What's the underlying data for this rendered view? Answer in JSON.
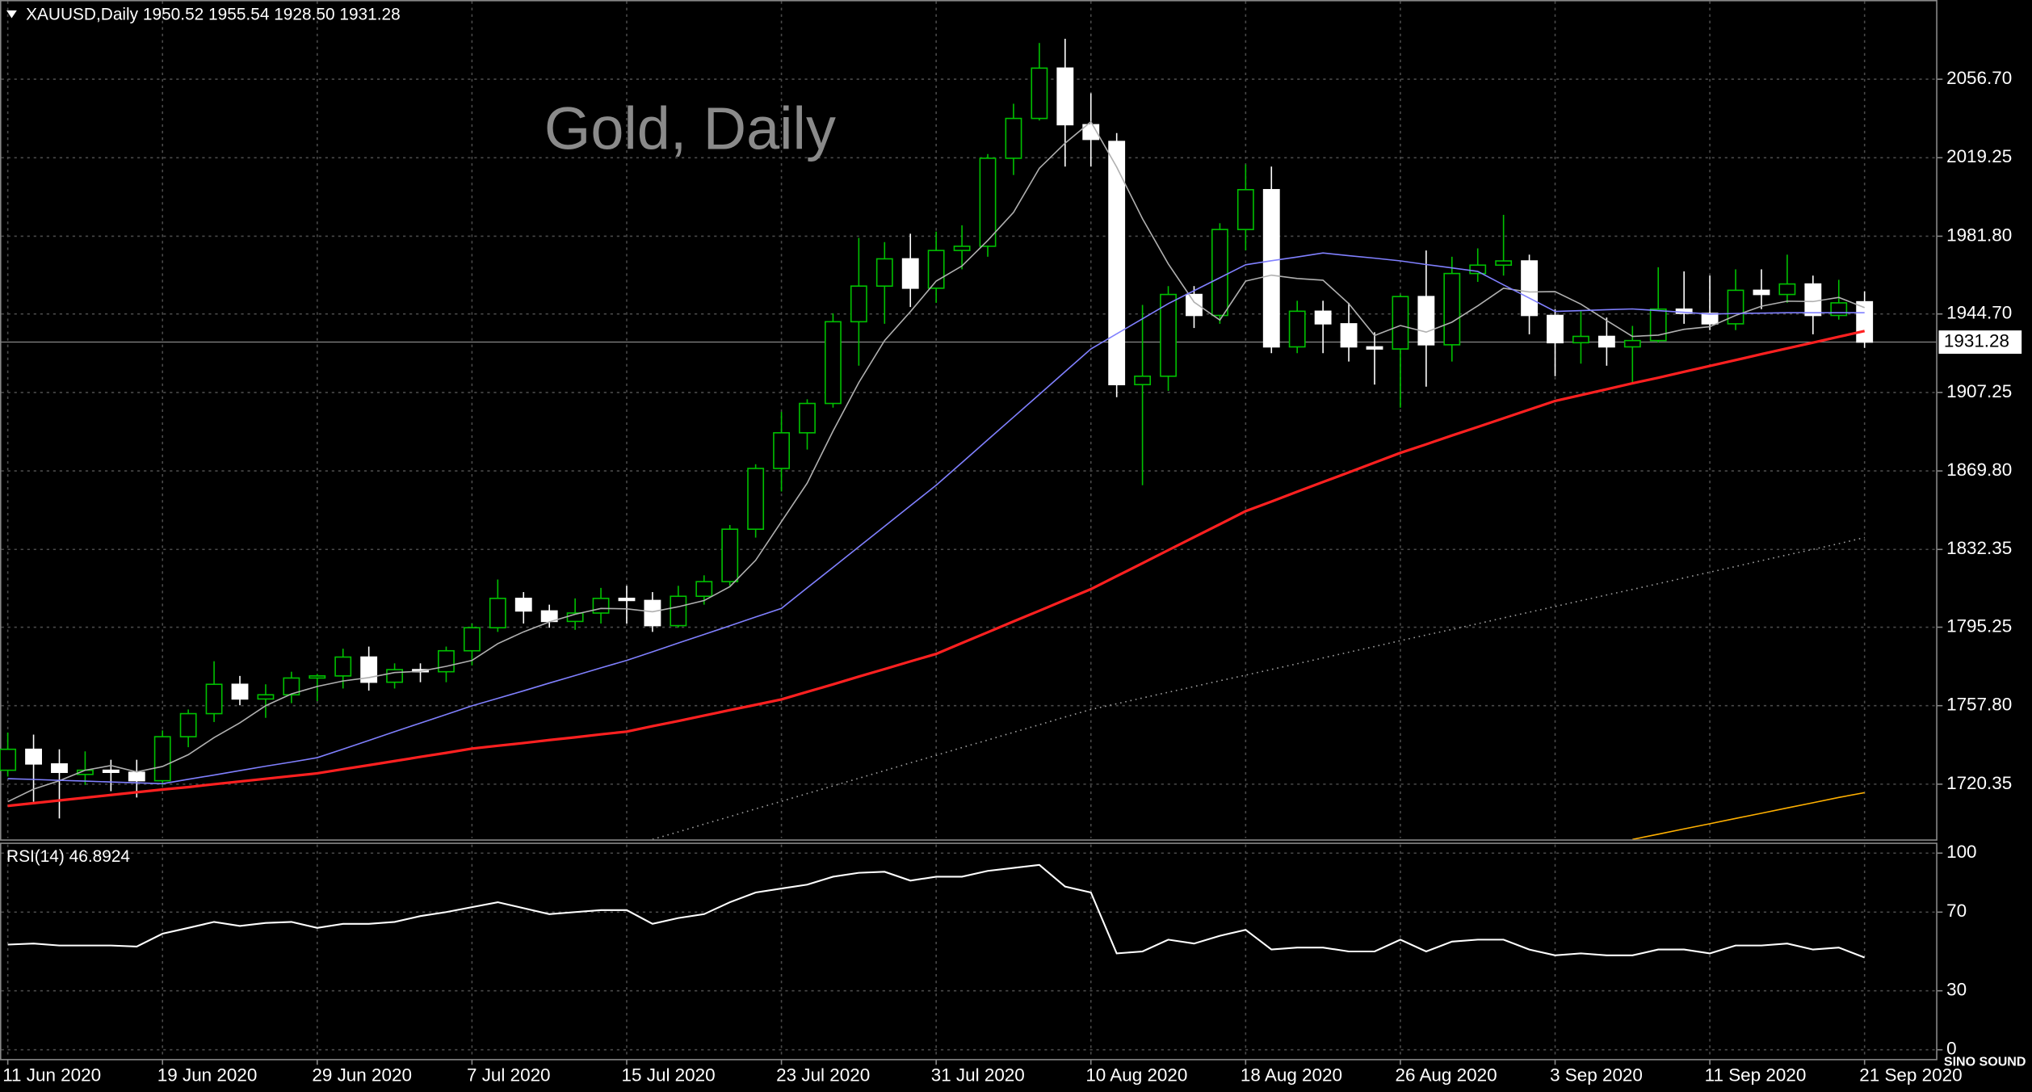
{
  "chart_data": [
    {
      "type": "candlestick",
      "header": "XAUUSD,Daily  1950.52 1955.54 1928.50 1931.28",
      "title": "Gold, Daily",
      "categories": [
        "11 Jun 2020",
        null,
        null,
        null,
        null,
        null,
        "19 Jun 2020",
        null,
        null,
        null,
        null,
        null,
        "29 Jun 2020",
        null,
        null,
        null,
        null,
        null,
        "7 Jul 2020",
        null,
        null,
        null,
        null,
        null,
        "15 Jul 2020",
        null,
        null,
        null,
        null,
        null,
        "23 Jul 2020",
        null,
        null,
        null,
        null,
        null,
        "31 Jul 2020",
        null,
        null,
        null,
        null,
        null,
        "10 Aug 2020",
        null,
        null,
        null,
        null,
        null,
        "18 Aug 2020",
        null,
        null,
        null,
        null,
        null,
        "26 Aug 2020",
        null,
        null,
        null,
        null,
        null,
        "3 Sep 2020",
        null,
        null,
        null,
        null,
        null,
        "11 Sep 2020",
        null,
        null,
        null,
        null,
        null,
        "21 Sep 2020"
      ],
      "open": [
        1727,
        1737,
        1730,
        1725,
        1727,
        1726,
        1722,
        1743,
        1754,
        1768,
        1761,
        1763,
        1771,
        1772,
        1781,
        1769,
        1775,
        1774,
        1784,
        1795,
        1809,
        1803,
        1798,
        1802,
        1809,
        1808,
        1796,
        1810,
        1817,
        1842,
        1871,
        1888,
        1902,
        1941,
        1958,
        1971,
        1957,
        1975,
        1977,
        2019,
        2038,
        2062,
        2035,
        2027,
        1911,
        1915,
        1954,
        1944,
        1985,
        2004,
        1929,
        1946,
        1940,
        1929,
        1928,
        1953,
        1930,
        1964,
        1968,
        1970,
        1944,
        1931,
        1934,
        1929,
        1932,
        1947,
        1945,
        1940,
        1956,
        1954,
        1959,
        1944,
        1950.52
      ],
      "high": [
        1745,
        1744,
        1737,
        1736,
        1732,
        1732,
        1746,
        1756,
        1779,
        1772,
        1768,
        1774,
        1773,
        1785,
        1786,
        1778,
        1778,
        1786,
        1797,
        1818,
        1812,
        1806,
        1809,
        1814,
        1815,
        1812,
        1815,
        1820,
        1844,
        1873,
        1898,
        1904,
        1945,
        1981,
        1979,
        1983,
        1984,
        1987,
        2021,
        2045,
        2074,
        2076,
        2050,
        2031,
        1949,
        1958,
        1958,
        1988,
        2016,
        2015,
        1951,
        1951,
        1950,
        1936,
        1954,
        1975,
        1972,
        1976,
        1992,
        1973,
        1947,
        1946,
        1943,
        1939,
        1967,
        1965,
        1963,
        1966,
        1966,
        1973,
        1963,
        1961,
        1955.54
      ],
      "low": [
        1724,
        1712,
        1704,
        1720,
        1717,
        1714,
        1720,
        1738,
        1750,
        1758,
        1752,
        1759,
        1760,
        1766,
        1765,
        1766,
        1769,
        1769,
        1777,
        1793,
        1797,
        1795,
        1794,
        1797,
        1797,
        1793,
        1795,
        1806,
        1815,
        1838,
        1860,
        1880,
        1900,
        1920,
        1940,
        1948,
        1950,
        1966,
        1972,
        2011,
        2037,
        2015,
        2015,
        1905,
        1863,
        1908,
        1938,
        1940,
        1975,
        1926,
        1926,
        1926,
        1922,
        1911,
        1900,
        1910,
        1922,
        1960,
        1963,
        1935,
        1915,
        1921,
        1920,
        1912,
        1931,
        1940,
        1937,
        1937,
        1947,
        1950,
        1935,
        1942,
        1928.5
      ],
      "close": [
        1737,
        1730,
        1726,
        1727,
        1726,
        1722,
        1743,
        1754,
        1768,
        1761,
        1763,
        1771,
        1772,
        1781,
        1769,
        1775,
        1774,
        1784,
        1795,
        1809,
        1803,
        1798,
        1802,
        1809,
        1808,
        1796,
        1810,
        1817,
        1842,
        1871,
        1888,
        1902,
        1941,
        1958,
        1971,
        1957,
        1975,
        1977,
        2019,
        2038,
        2062,
        2035,
        2028,
        1911,
        1915,
        1954,
        1944,
        1985,
        2004,
        1929,
        1946,
        1940,
        1929,
        1928,
        1953,
        1930,
        1964,
        1968,
        1970,
        1944,
        1931,
        1934,
        1929,
        1932,
        1947,
        1945,
        1940,
        1956,
        1954,
        1959,
        1944,
        1950,
        1931.28
      ],
      "up_color": "#00c000",
      "down_color": "#ffffff",
      "lines": [
        {
          "color": "#b0b0b0",
          "style": "solid",
          "values": [
            1712,
            1718,
            1722,
            1727,
            1729.2,
            1726.2,
            1728.8,
            1734.4,
            1742.6,
            1749.6,
            1757.8,
            1763.4,
            1767,
            1769.6,
            1771.2,
            1773.6,
            1774.2,
            1776.6,
            1779.4,
            1787.4,
            1793,
            1797.8,
            1801.4,
            1804.2,
            1804,
            1802.6,
            1805,
            1808,
            1814.6,
            1827.2,
            1845.6,
            1864,
            1888.8,
            1912,
            1932,
            1945.8,
            1960.4,
            1967.6,
            1979.8,
            1993.2,
            2014.2,
            2026.2,
            2036.4,
            2014.8,
            1990.2,
            1968.6,
            1950.4,
            1941.8,
            1960.4,
            1963.2,
            1961.6,
            1960.8,
            1949.6,
            1934.4,
            1939.2,
            1936,
            1940.8,
            1948.6,
            1957,
            1955.2,
            1955.4,
            1949.4,
            1941.6,
            1934,
            1934.6,
            1937.4,
            1938.6,
            1944,
            1948.4,
            1950.8,
            1950.6,
            1952.6,
            1947.7
          ]
        },
        {
          "color": "#8080ff",
          "style": "solid",
          "values": [
            1723,
            1722.6,
            1722.2,
            1721.8,
            1721.4,
            1721,
            1720.6,
            1722.7,
            1724.7,
            1726.8,
            1728.9,
            1730.9,
            1733,
            1737.1,
            1741.2,
            1745.4,
            1749.5,
            1753.6,
            1757.7,
            1761.3,
            1764.9,
            1768.6,
            1772.2,
            1775.8,
            1779.4,
            1783.5,
            1787.7,
            1791.8,
            1795.9,
            1800.1,
            1804.2,
            1814,
            1823.8,
            1833.6,
            1843.4,
            1853.2,
            1863,
            1873.8,
            1884.7,
            1895.5,
            1906.3,
            1917.2,
            1928,
            1935.2,
            1942.4,
            1949.6,
            1955.8,
            1962,
            1968.2,
            1970.1,
            1971.9,
            1973.8,
            1972.5,
            1971.3,
            1970,
            1968.3,
            1966.7,
            1965,
            1958.6,
            1952.3,
            1945.9,
            1946.3,
            1946.7,
            1947.1,
            1946.3,
            1945.5,
            1944.7,
            1944.9,
            1945.1,
            1945.3,
            1945.3,
            1945.3,
            1945.3
          ]
        },
        {
          "color": "#ff2020",
          "style": "thick",
          "values": [
            1710,
            1711.3,
            1712.6,
            1713.9,
            1715.2,
            1716.5,
            1717.8,
            1719,
            1720.3,
            1721.6,
            1722.9,
            1724.2,
            1725.5,
            1727.5,
            1729.4,
            1731.4,
            1733.4,
            1735.3,
            1737.3,
            1738.7,
            1740,
            1741.4,
            1742.7,
            1744.1,
            1745.4,
            1748,
            1750.5,
            1753.1,
            1755.7,
            1758.2,
            1760.8,
            1764.4,
            1768,
            1771.7,
            1775.3,
            1778.9,
            1782.5,
            1787.7,
            1792.8,
            1798,
            1803.1,
            1808.3,
            1813.4,
            1819.6,
            1825.8,
            1832,
            1838.2,
            1844.4,
            1850.6,
            1855.2,
            1859.9,
            1864.5,
            1869.1,
            1873.8,
            1878.4,
            1882.5,
            1886.7,
            1890.8,
            1894.9,
            1899.1,
            1903.2,
            1906,
            1908.8,
            1911.6,
            1914.3,
            1917.1,
            1919.9,
            1922.7,
            1925.5,
            1928.3,
            1931,
            1933.8,
            1936.6
          ]
        },
        {
          "color": "#a0a0a0",
          "style": "dotted",
          "values": [
            null,
            null,
            null,
            null,
            null,
            null,
            null,
            null,
            null,
            null,
            null,
            null,
            null,
            null,
            null,
            null,
            null,
            null,
            null,
            null,
            null,
            null,
            null,
            null,
            null,
            1694,
            1697.6,
            1701.3,
            1704.9,
            1708.6,
            1712.2,
            1715.9,
            1719.5,
            1723.2,
            1726.8,
            1730.5,
            1734.1,
            1737.8,
            1741.4,
            1745.1,
            1748.7,
            1752.4,
            1756,
            1758.7,
            1761.5,
            1764.2,
            1766.9,
            1769.7,
            1772.4,
            1775.1,
            1777.8,
            1780.6,
            1783.3,
            1786,
            1788.8,
            1791.5,
            1794.2,
            1796.9,
            1799.7,
            1802.4,
            1805.1,
            1807.9,
            1810.6,
            1813.3,
            1816,
            1818.8,
            1821.5,
            1824.2,
            1827,
            1829.7,
            1832.4,
            1835.1,
            1838
          ]
        },
        {
          "color": "#ffb000",
          "style": "solid",
          "values": [
            null,
            null,
            null,
            null,
            null,
            null,
            null,
            null,
            null,
            null,
            null,
            null,
            null,
            null,
            null,
            null,
            null,
            null,
            null,
            null,
            null,
            null,
            null,
            null,
            null,
            null,
            null,
            null,
            null,
            null,
            null,
            null,
            null,
            null,
            null,
            null,
            null,
            null,
            null,
            null,
            null,
            null,
            null,
            null,
            null,
            null,
            null,
            null,
            null,
            null,
            null,
            null,
            null,
            null,
            null,
            null,
            null,
            null,
            null,
            null,
            null,
            null,
            null,
            1694,
            1696.5,
            1699,
            1701.5,
            1704,
            1706.5,
            1709,
            1711.5,
            1714,
            1716.3
          ]
        }
      ],
      "ylim": [
        1694,
        2094.5
      ],
      "yticks": [
        {
          "value": 2056.7,
          "label": "2056.70"
        },
        {
          "value": 2019.25,
          "label": "2019.25"
        },
        {
          "value": 1981.8,
          "label": "1981.80"
        },
        {
          "value": 1944.7,
          "label": "1944.70"
        },
        {
          "value": 1907.25,
          "label": "1907.25"
        },
        {
          "value": 1869.8,
          "label": "1869.80"
        },
        {
          "value": 1832.35,
          "label": "1832.35"
        },
        {
          "value": 1795.25,
          "label": "1795.25"
        },
        {
          "value": 1757.8,
          "label": "1757.80"
        },
        {
          "value": 1720.35,
          "label": "1720.35"
        }
      ],
      "price_line": {
        "value": 1931.28,
        "label": "1931.28"
      },
      "grid": true
    },
    {
      "type": "line",
      "title": "RSI(14) 46.8924",
      "color": "#ffffff",
      "values": [
        53.5,
        54,
        53,
        53,
        53,
        52.5,
        59,
        62,
        65,
        63,
        64.5,
        65,
        62,
        64,
        64,
        65,
        68,
        70,
        72.5,
        75,
        72,
        69,
        70,
        71,
        71,
        64,
        67,
        69,
        75,
        80,
        82,
        84,
        88,
        90,
        90.5,
        86,
        88,
        88,
        91,
        92.5,
        94,
        83,
        80,
        49,
        50,
        56,
        54,
        58,
        61,
        51,
        52,
        52,
        50,
        50,
        56,
        50,
        55,
        56,
        56,
        51,
        48,
        49,
        48,
        48,
        51,
        51,
        49,
        53,
        53,
        54,
        51,
        52,
        46.8924
      ],
      "ylim": [
        -5,
        105
      ],
      "yticks": [
        100,
        70,
        30,
        0
      ],
      "grid": true
    }
  ],
  "watermark": "SINO SOUND"
}
